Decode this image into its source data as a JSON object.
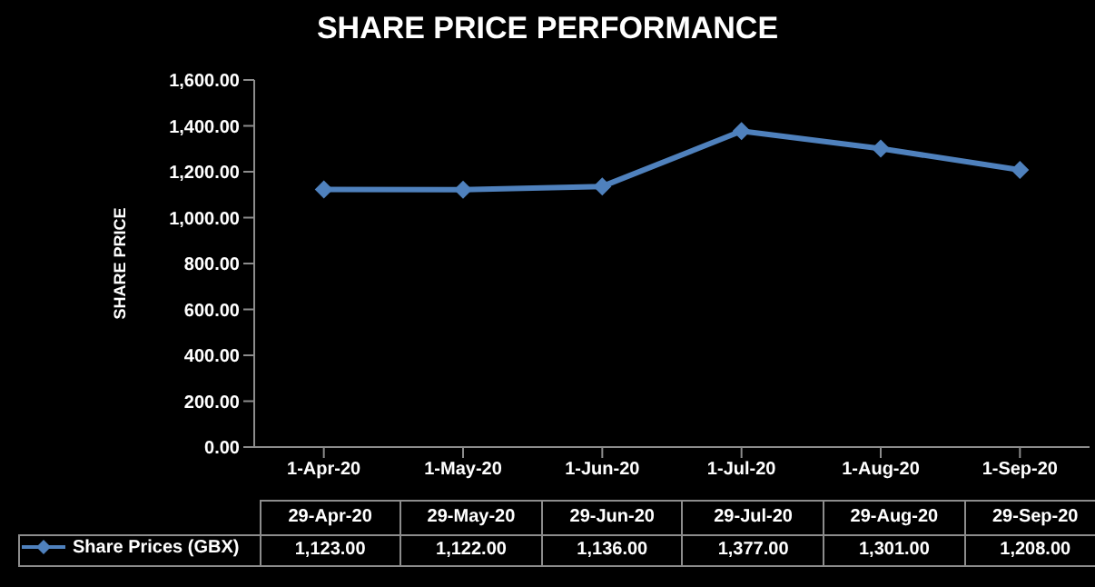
{
  "chart_data": {
    "type": "line",
    "title": "SHARE PRICE PERFORMANCE",
    "ylabel": "SHARE PRICE",
    "categories": [
      "1-Apr-20",
      "1-May-20",
      "1-Jun-20",
      "1-Jul-20",
      "1-Aug-20",
      "1-Sep-20"
    ],
    "series": [
      {
        "name": "Share Prices (GBX)",
        "color": "#4f81bd",
        "values": [
          1123,
          1122,
          1136,
          1377,
          1301,
          1208
        ],
        "value_labels": [
          "1,123.00",
          "1,122.00",
          "1,136.00",
          "1,377.00",
          "1,301.00",
          "1,208.00"
        ]
      }
    ],
    "annotations": [
      "29-Apr-20",
      "29-May-20",
      "29-Jun-20",
      "29-Jul-20",
      "29-Aug-20",
      "29-Sep-20"
    ],
    "ylim": [
      0,
      1600
    ],
    "yticks": [
      {
        "value": 0,
        "label": "0.00"
      },
      {
        "value": 200,
        "label": "200.00"
      },
      {
        "value": 400,
        "label": "400.00"
      },
      {
        "value": 600,
        "label": "600.00"
      },
      {
        "value": 800,
        "label": "800.00"
      },
      {
        "value": 1000,
        "label": "1,000.00"
      },
      {
        "value": 1200,
        "label": "1,200.00"
      },
      {
        "value": 1400,
        "label": "1,400.00"
      },
      {
        "value": 1600,
        "label": "1,600.00"
      }
    ],
    "marker": "diamond",
    "line_style": "solid",
    "legend": "bottom"
  }
}
